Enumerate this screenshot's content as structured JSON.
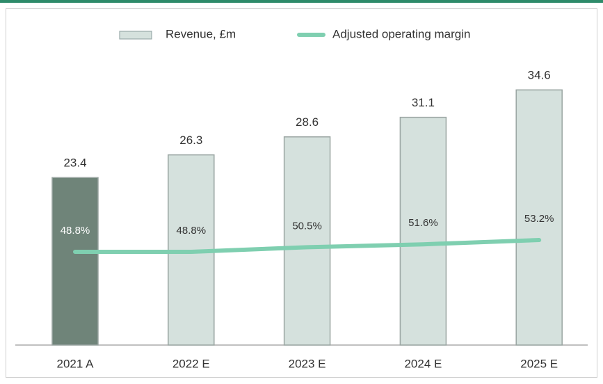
{
  "chart_data": {
    "type": "bar_line",
    "categories": [
      "2021 A",
      "2022 E",
      "2023 E",
      "2024 E",
      "2025 E"
    ],
    "series": [
      {
        "name": "Revenue, £m",
        "type": "bar",
        "color": "#d5e1dd",
        "colors": [
          "#6f8479",
          "#d5e1dd",
          "#d5e1dd",
          "#d5e1dd",
          "#d5e1dd"
        ],
        "values": [
          23.4,
          26.3,
          28.6,
          31.1,
          34.6
        ]
      },
      {
        "name": "Adjusted operating margin",
        "type": "line",
        "axis": "y2",
        "color": "#7fcfb0",
        "values": [
          48.8,
          48.8,
          50.5,
          51.6,
          53.2
        ],
        "value_labels": [
          "48.8%",
          "48.8%",
          "50.5%",
          "51.6%",
          "53.2%"
        ]
      }
    ],
    "ylim": [
      2,
      40
    ],
    "y2lim": [
      14,
      125
    ],
    "legend": "top"
  }
}
